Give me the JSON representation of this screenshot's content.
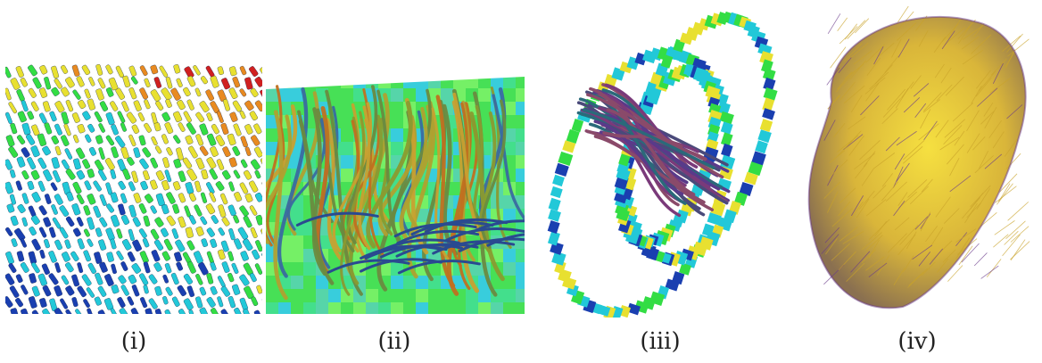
{
  "figure": {
    "panels": [
      {
        "label": "(i)",
        "icon": "glyph-field-image"
      },
      {
        "label": "(ii)",
        "icon": "fiber-tracts-image"
      },
      {
        "label": "(iii)",
        "icon": "heart-slice-tracts-image"
      },
      {
        "label": "(iv)",
        "icon": "heart-fibers-image"
      }
    ],
    "colors": {
      "blue": "#1a3fb0",
      "cyan": "#22c8d8",
      "green": "#33dd44",
      "yellow": "#e8e030",
      "orange": "#e88a20",
      "red": "#d02020",
      "gold": "#d9b53a",
      "purple": "#6a3a8a"
    }
  }
}
